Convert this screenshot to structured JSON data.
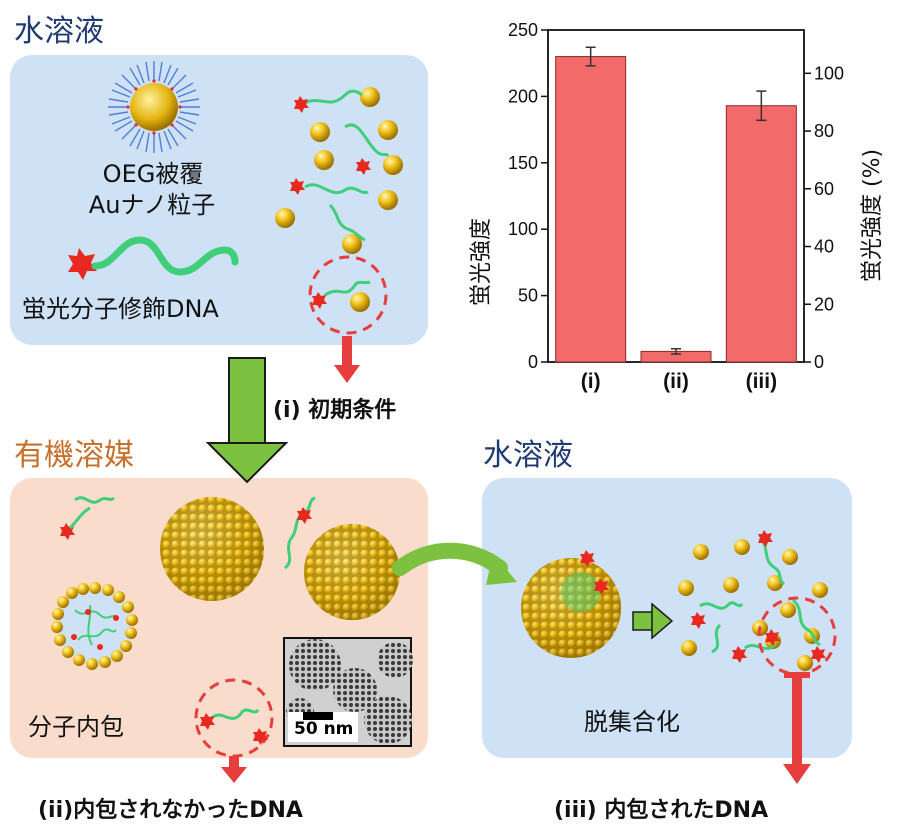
{
  "top_left": {
    "title": "水溶液",
    "particle_label_line1": "OEG被覆",
    "particle_label_line2": "Auナノ粒子",
    "dna_label": "蛍光分子修飾DNA"
  },
  "arrow_caption": "(i) 初期条件",
  "organic": {
    "title": "有機溶媒",
    "encapsulation_label": "分子内包",
    "scalebar_label": "50 nm",
    "caption": "(ii)内包されなかったDNA"
  },
  "aqueous_right": {
    "title": "水溶液",
    "disaggregation_label": "脱集合化",
    "caption": "(iii) 内包されたDNA"
  },
  "chart_data": {
    "type": "bar",
    "categories": [
      "(i)",
      "(ii)",
      "(iii)"
    ],
    "values": [
      230,
      8,
      193
    ],
    "errors": [
      7,
      2,
      11
    ],
    "ylabel": "蛍光強度",
    "ylabel_right": "蛍光強度 (%)",
    "ylim": [
      0,
      250
    ],
    "yticks": [
      0,
      50,
      100,
      150,
      200,
      250
    ],
    "ylim_right": [
      0,
      115
    ],
    "yticks_right": [
      0,
      20,
      40,
      60,
      80,
      100
    ],
    "bar_color": "#f26a6a",
    "grid": false
  },
  "colors": {
    "blue_panel": "#cfe1f5",
    "orange_panel": "#f9dccb",
    "gold": "#e8b40f",
    "dna_green": "#3fcf7a",
    "fluor_red": "#e8291f",
    "arrow_green": "#7cc240",
    "arrow_red": "#e63d3d"
  }
}
